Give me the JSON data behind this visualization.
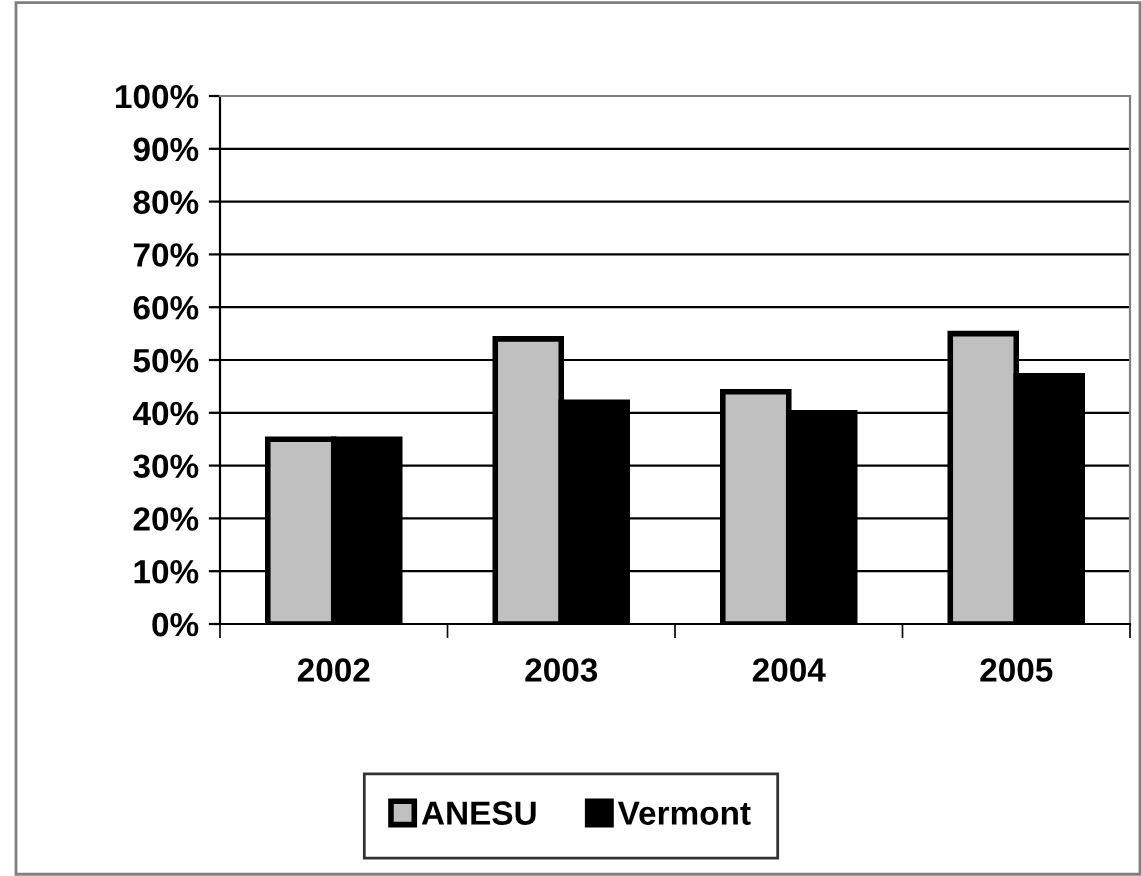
{
  "chart_data": {
    "type": "bar",
    "categories": [
      "2002",
      "2003",
      "2004",
      "2005"
    ],
    "series": [
      {
        "name": "ANESU",
        "color": "#c0c0c0",
        "values": [
          35,
          54,
          44,
          55
        ]
      },
      {
        "name": "Vermont",
        "color": "#000000",
        "values": [
          35,
          42,
          40,
          47
        ]
      }
    ],
    "ylim": [
      0,
      100
    ],
    "yticks": [
      {
        "value": 0,
        "label": "0%"
      },
      {
        "value": 10,
        "label": "10%"
      },
      {
        "value": 20,
        "label": "20%"
      },
      {
        "value": 30,
        "label": "30%"
      },
      {
        "value": 40,
        "label": "40%"
      },
      {
        "value": 50,
        "label": "50%"
      },
      {
        "value": 60,
        "label": "60%"
      },
      {
        "value": 70,
        "label": "70%"
      },
      {
        "value": 80,
        "label": "80%"
      },
      {
        "value": 90,
        "label": "90%"
      },
      {
        "value": 100,
        "label": "100%"
      }
    ],
    "grid": "y",
    "legend": "bottom"
  }
}
